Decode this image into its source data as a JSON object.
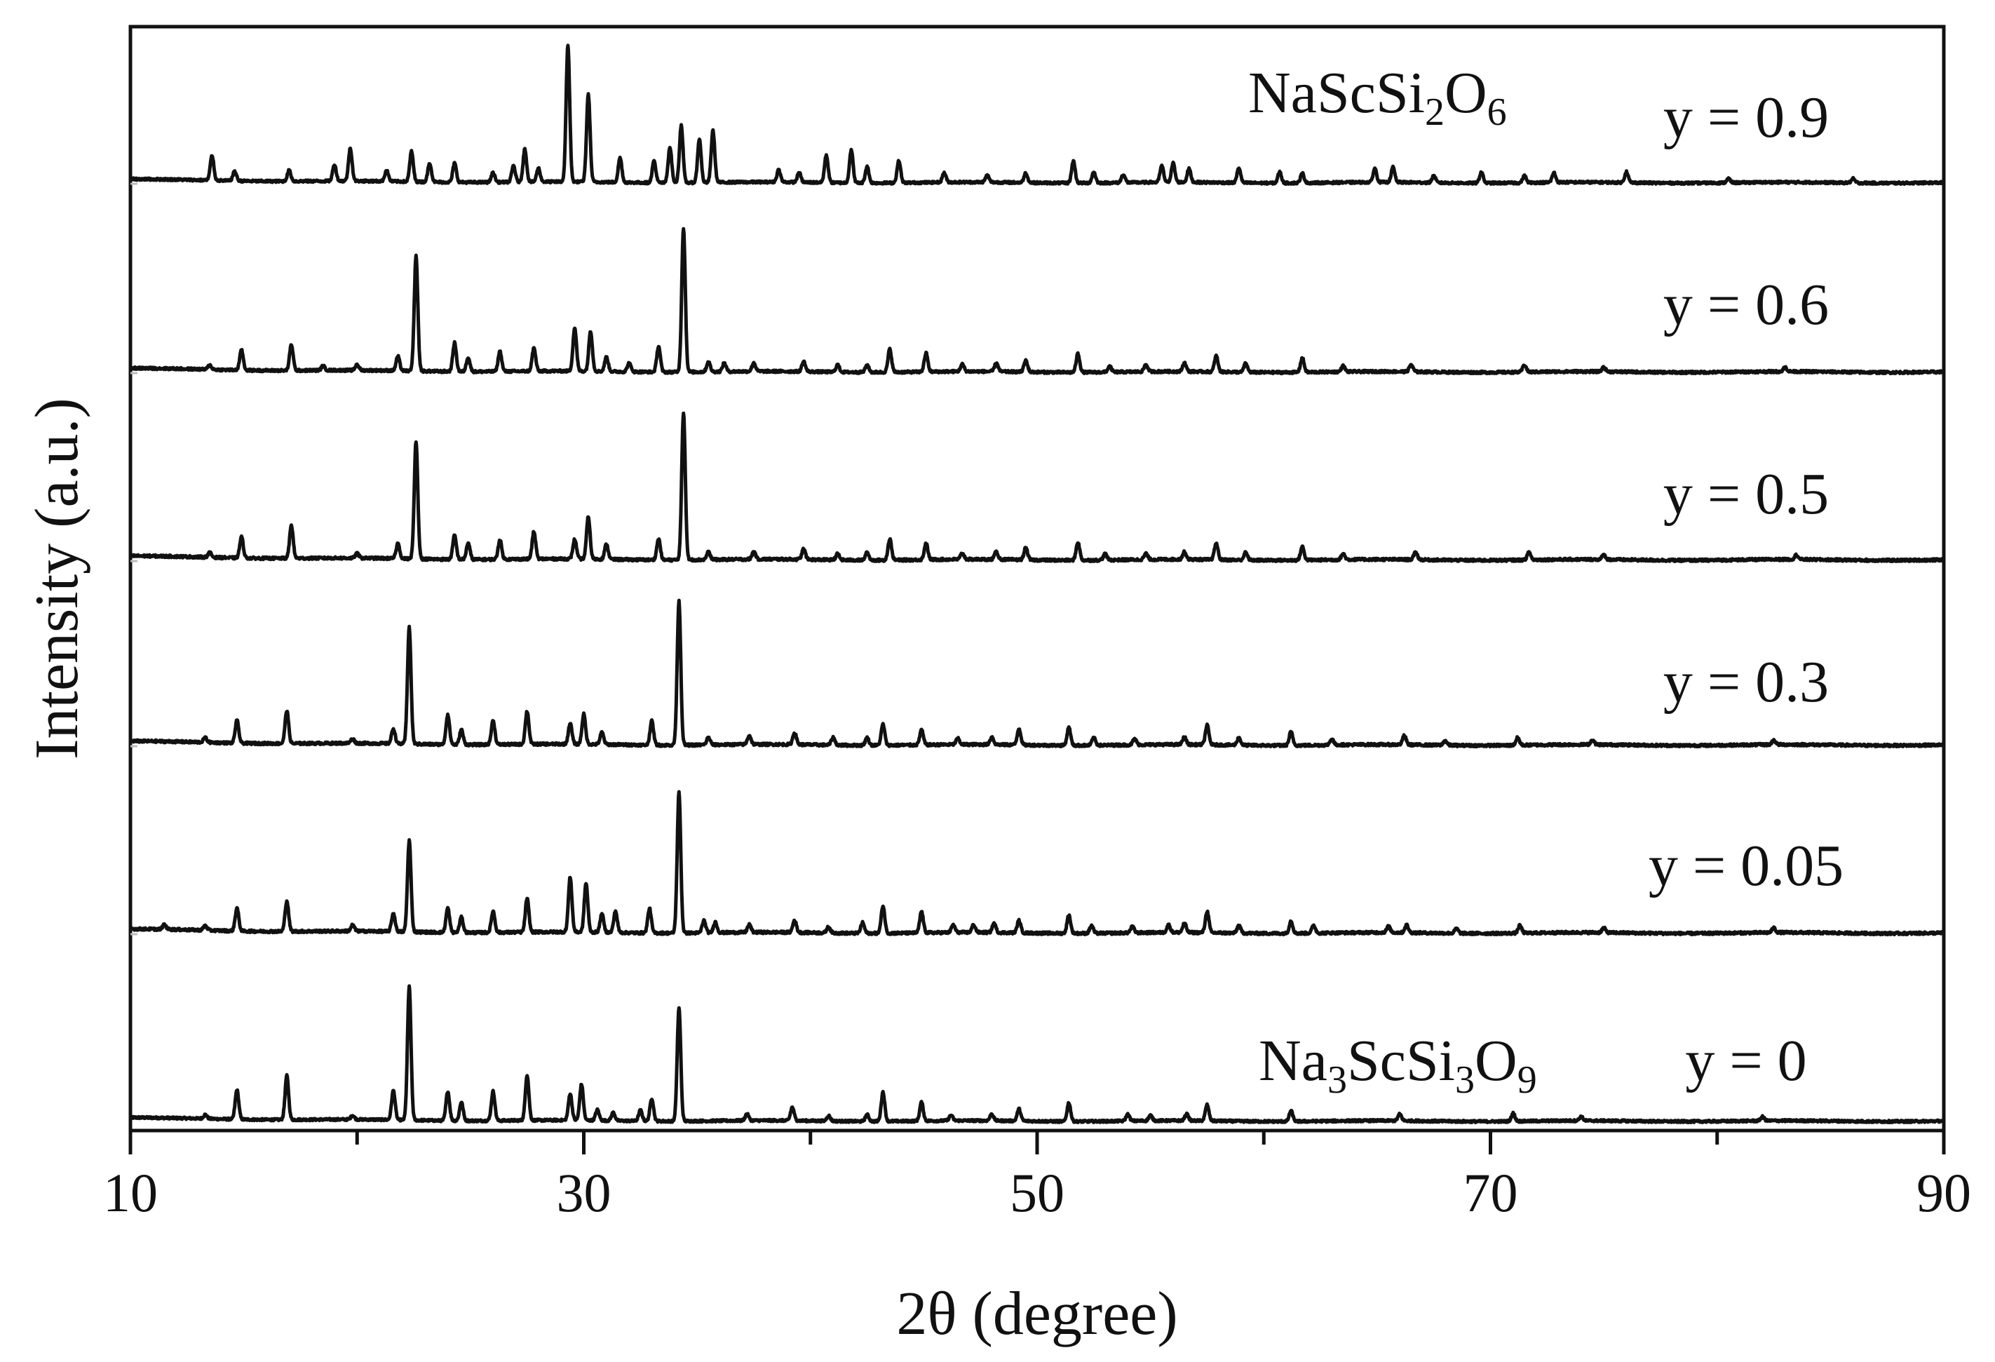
{
  "chart_data": {
    "type": "line",
    "title": "",
    "xlabel": "2θ (degree)",
    "ylabel": "Intensity (a.u.)",
    "xlim": [
      10,
      90
    ],
    "xticks": [
      10,
      30,
      50,
      70,
      90
    ],
    "xticks_minor": [
      20,
      40,
      60,
      80
    ],
    "grid": false,
    "legend": "none",
    "line_color": "#111111",
    "series": [
      {
        "label": "y = 0",
        "phase_label": {
          "parts": [
            {
              "t": "Na",
              "sub": false
            },
            {
              "t": "3",
              "sub": true
            },
            {
              "t": "ScSi",
              "sub": false
            },
            {
              "t": "3",
              "sub": true
            },
            {
              "t": "O",
              "sub": false
            },
            {
              "t": "9",
              "sub": true
            }
          ]
        },
        "peaks": [
          [
            13.3,
            3
          ],
          [
            14.7,
            22
          ],
          [
            16.9,
            33
          ],
          [
            19.8,
            3
          ],
          [
            21.6,
            22
          ],
          [
            22.3,
            100
          ],
          [
            24.0,
            22
          ],
          [
            24.6,
            14
          ],
          [
            26.0,
            22
          ],
          [
            27.5,
            34
          ],
          [
            29.4,
            20
          ],
          [
            29.9,
            27
          ],
          [
            30.6,
            8
          ],
          [
            31.3,
            6
          ],
          [
            32.5,
            8
          ],
          [
            33.0,
            17
          ],
          [
            34.2,
            85
          ],
          [
            37.2,
            5
          ],
          [
            39.2,
            10
          ],
          [
            40.8,
            4
          ],
          [
            42.5,
            5
          ],
          [
            43.2,
            22
          ],
          [
            44.9,
            14
          ],
          [
            46.2,
            4
          ],
          [
            48.0,
            5
          ],
          [
            49.2,
            9
          ],
          [
            51.4,
            14
          ],
          [
            54.0,
            5
          ],
          [
            55.0,
            4
          ],
          [
            56.6,
            5
          ],
          [
            57.5,
            12
          ],
          [
            61.2,
            8
          ],
          [
            66.0,
            5
          ],
          [
            71.0,
            6
          ],
          [
            74.0,
            3
          ],
          [
            82.0,
            3
          ]
        ]
      },
      {
        "label": "y = 0.05",
        "peaks": [
          [
            11.5,
            3
          ],
          [
            13.3,
            3
          ],
          [
            14.7,
            15
          ],
          [
            16.9,
            20
          ],
          [
            19.8,
            4
          ],
          [
            21.6,
            12
          ],
          [
            22.3,
            60
          ],
          [
            24.0,
            16
          ],
          [
            24.6,
            10
          ],
          [
            26.0,
            14
          ],
          [
            27.5,
            22
          ],
          [
            29.4,
            36
          ],
          [
            30.1,
            32
          ],
          [
            30.8,
            12
          ],
          [
            31.4,
            14
          ],
          [
            32.9,
            16
          ],
          [
            34.2,
            92
          ],
          [
            35.3,
            8
          ],
          [
            35.8,
            7
          ],
          [
            37.3,
            5
          ],
          [
            39.3,
            8
          ],
          [
            40.8,
            4
          ],
          [
            42.3,
            7
          ],
          [
            43.2,
            18
          ],
          [
            44.9,
            14
          ],
          [
            46.3,
            5
          ],
          [
            47.2,
            5
          ],
          [
            48.1,
            6
          ],
          [
            49.2,
            8
          ],
          [
            51.4,
            12
          ],
          [
            52.4,
            5
          ],
          [
            54.2,
            4
          ],
          [
            55.8,
            5
          ],
          [
            56.5,
            6
          ],
          [
            57.5,
            14
          ],
          [
            58.9,
            5
          ],
          [
            61.2,
            8
          ],
          [
            62.2,
            5
          ],
          [
            65.5,
            4
          ],
          [
            66.3,
            5
          ],
          [
            68.5,
            3
          ],
          [
            71.3,
            5
          ],
          [
            75.0,
            3
          ],
          [
            82.5,
            3
          ]
        ]
      },
      {
        "label": "y = 0.3",
        "peaks": [
          [
            13.3,
            3
          ],
          [
            14.7,
            15
          ],
          [
            16.9,
            22
          ],
          [
            19.8,
            3
          ],
          [
            21.6,
            10
          ],
          [
            22.3,
            78
          ],
          [
            24.0,
            20
          ],
          [
            24.6,
            10
          ],
          [
            26.0,
            16
          ],
          [
            27.5,
            22
          ],
          [
            29.4,
            14
          ],
          [
            30.0,
            20
          ],
          [
            30.8,
            8
          ],
          [
            33.0,
            16
          ],
          [
            34.2,
            96
          ],
          [
            35.5,
            5
          ],
          [
            37.3,
            6
          ],
          [
            39.3,
            8
          ],
          [
            41.0,
            5
          ],
          [
            42.5,
            5
          ],
          [
            43.2,
            14
          ],
          [
            44.9,
            10
          ],
          [
            46.5,
            4
          ],
          [
            48.0,
            5
          ],
          [
            49.2,
            11
          ],
          [
            51.4,
            12
          ],
          [
            52.5,
            5
          ],
          [
            54.3,
            4
          ],
          [
            56.5,
            5
          ],
          [
            57.5,
            13
          ],
          [
            58.9,
            5
          ],
          [
            61.2,
            9
          ],
          [
            63.0,
            4
          ],
          [
            66.2,
            6
          ],
          [
            68.0,
            3
          ],
          [
            71.2,
            5
          ],
          [
            74.5,
            3
          ],
          [
            82.5,
            3
          ]
        ]
      },
      {
        "label": "y = 0.5",
        "peaks": [
          [
            13.5,
            3
          ],
          [
            14.9,
            14
          ],
          [
            17.1,
            22
          ],
          [
            20.0,
            3
          ],
          [
            21.8,
            10
          ],
          [
            22.6,
            78
          ],
          [
            24.3,
            16
          ],
          [
            24.9,
            11
          ],
          [
            26.3,
            13
          ],
          [
            27.8,
            18
          ],
          [
            29.6,
            13
          ],
          [
            30.2,
            28
          ],
          [
            31.0,
            10
          ],
          [
            33.3,
            14
          ],
          [
            34.4,
            98
          ],
          [
            35.5,
            5
          ],
          [
            37.5,
            5
          ],
          [
            39.7,
            7
          ],
          [
            41.2,
            4
          ],
          [
            42.5,
            5
          ],
          [
            43.5,
            14
          ],
          [
            45.1,
            11
          ],
          [
            46.7,
            4
          ],
          [
            48.2,
            5
          ],
          [
            49.5,
            8
          ],
          [
            51.8,
            12
          ],
          [
            53.0,
            4
          ],
          [
            54.8,
            4
          ],
          [
            56.5,
            5
          ],
          [
            57.9,
            11
          ],
          [
            59.2,
            5
          ],
          [
            61.7,
            9
          ],
          [
            63.5,
            4
          ],
          [
            66.7,
            5
          ],
          [
            71.7,
            5
          ],
          [
            75.0,
            3
          ],
          [
            83.5,
            3
          ]
        ]
      },
      {
        "label": "y = 0.6",
        "peaks": [
          [
            13.5,
            3
          ],
          [
            14.9,
            14
          ],
          [
            17.1,
            18
          ],
          [
            18.5,
            3
          ],
          [
            20.0,
            4
          ],
          [
            21.8,
            10
          ],
          [
            22.6,
            80
          ],
          [
            24.3,
            20
          ],
          [
            24.9,
            10
          ],
          [
            26.3,
            14
          ],
          [
            27.8,
            16
          ],
          [
            29.6,
            30
          ],
          [
            30.3,
            28
          ],
          [
            31.0,
            10
          ],
          [
            32.0,
            6
          ],
          [
            33.3,
            18
          ],
          [
            34.4,
            100
          ],
          [
            35.5,
            7
          ],
          [
            36.2,
            6
          ],
          [
            37.5,
            6
          ],
          [
            39.7,
            7
          ],
          [
            41.2,
            5
          ],
          [
            42.5,
            5
          ],
          [
            43.5,
            16
          ],
          [
            45.1,
            13
          ],
          [
            46.7,
            5
          ],
          [
            48.2,
            6
          ],
          [
            49.5,
            8
          ],
          [
            51.8,
            13
          ],
          [
            53.2,
            4
          ],
          [
            54.8,
            5
          ],
          [
            56.5,
            6
          ],
          [
            57.9,
            11
          ],
          [
            59.2,
            6
          ],
          [
            61.7,
            10
          ],
          [
            63.5,
            4
          ],
          [
            66.5,
            5
          ],
          [
            71.5,
            5
          ],
          [
            75.0,
            3
          ],
          [
            83.0,
            3
          ]
        ]
      },
      {
        "label": "y = 0.9",
        "phase_label": {
          "parts": [
            {
              "t": "NaScSi",
              "sub": false
            },
            {
              "t": "2",
              "sub": true
            },
            {
              "t": "O",
              "sub": false
            },
            {
              "t": "6",
              "sub": true
            }
          ]
        },
        "peaks": [
          [
            13.6,
            18
          ],
          [
            14.6,
            7
          ],
          [
            17.0,
            8
          ],
          [
            19.0,
            12
          ],
          [
            19.7,
            24
          ],
          [
            21.3,
            8
          ],
          [
            22.4,
            22
          ],
          [
            23.2,
            14
          ],
          [
            24.3,
            14
          ],
          [
            26.0,
            7
          ],
          [
            26.9,
            12
          ],
          [
            27.4,
            24
          ],
          [
            28.0,
            10
          ],
          [
            29.3,
            100
          ],
          [
            30.2,
            64
          ],
          [
            31.6,
            18
          ],
          [
            33.1,
            16
          ],
          [
            33.8,
            26
          ],
          [
            34.3,
            42
          ],
          [
            35.1,
            32
          ],
          [
            35.7,
            38
          ],
          [
            38.6,
            9
          ],
          [
            39.5,
            7
          ],
          [
            40.7,
            20
          ],
          [
            41.8,
            24
          ],
          [
            42.5,
            12
          ],
          [
            43.9,
            16
          ],
          [
            45.9,
            7
          ],
          [
            47.8,
            5
          ],
          [
            49.5,
            7
          ],
          [
            51.6,
            16
          ],
          [
            52.5,
            8
          ],
          [
            53.8,
            6
          ],
          [
            55.5,
            12
          ],
          [
            56.0,
            14
          ],
          [
            56.7,
            10
          ],
          [
            58.9,
            11
          ],
          [
            60.7,
            8
          ],
          [
            61.7,
            7
          ],
          [
            64.9,
            10
          ],
          [
            65.7,
            11
          ],
          [
            67.5,
            5
          ],
          [
            69.6,
            8
          ],
          [
            71.5,
            5
          ],
          [
            72.8,
            7
          ],
          [
            76.0,
            8
          ],
          [
            80.5,
            3
          ],
          [
            86.0,
            3
          ]
        ]
      }
    ]
  }
}
